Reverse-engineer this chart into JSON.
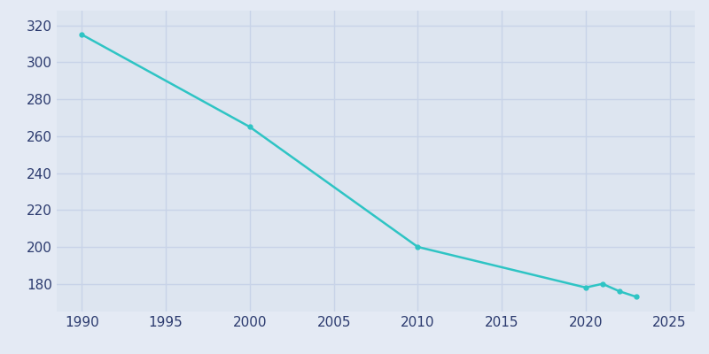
{
  "years": [
    1990,
    2000,
    2010,
    2020,
    2021,
    2022,
    2023
  ],
  "population": [
    315,
    265,
    200,
    178,
    180,
    176,
    173
  ],
  "line_color": "#2EC4C4",
  "marker": "o",
  "marker_size": 3.5,
  "line_width": 1.8,
  "background_color": "#E4EAF4",
  "plot_bg_color": "#DDE5F0",
  "grid_color": "#C8D3E8",
  "xlabel": "",
  "ylabel": "",
  "xlim": [
    1988.5,
    2026.5
  ],
  "ylim": [
    165,
    328
  ],
  "yticks": [
    180,
    200,
    220,
    240,
    260,
    280,
    300,
    320
  ],
  "xticks": [
    1990,
    1995,
    2000,
    2005,
    2010,
    2015,
    2020,
    2025
  ],
  "tick_color": "#2b3a6e",
  "tick_fontsize": 11
}
